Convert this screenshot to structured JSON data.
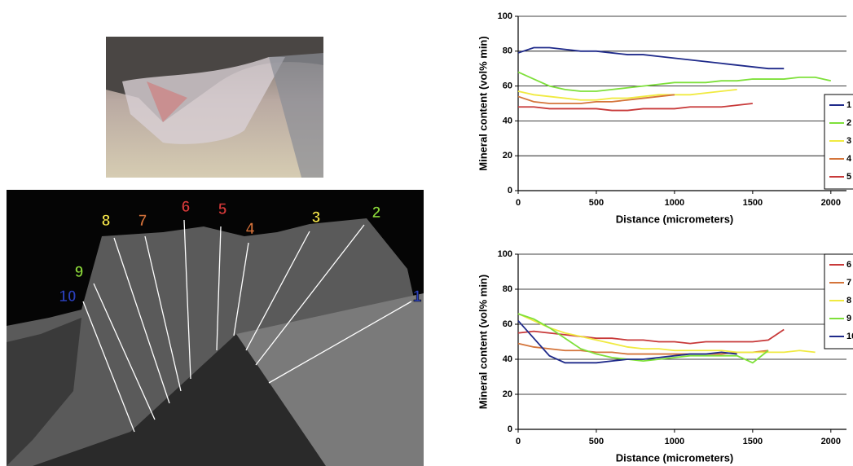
{
  "figure": {
    "line_labels": [
      {
        "text": "10",
        "color": "#2b3fb8"
      },
      {
        "text": "9",
        "color": "#8ad43a"
      },
      {
        "text": "8",
        "color": "#f2e24a"
      },
      {
        "text": "7",
        "color": "#d0703a"
      },
      {
        "text": "6",
        "color": "#d43a3a"
      },
      {
        "text": "5",
        "color": "#d43a3a"
      },
      {
        "text": "4",
        "color": "#d0703a"
      },
      {
        "text": "3",
        "color": "#f2e24a"
      },
      {
        "text": "2",
        "color": "#8ad43a"
      },
      {
        "text": "1",
        "color": "#2b3fb8"
      }
    ]
  },
  "chart_data": [
    {
      "type": "line",
      "x_label": "Distance (micrometers)",
      "y_label": "Mineral content (vol% min)",
      "x": [
        0,
        100,
        200,
        300,
        400,
        500,
        600,
        700,
        800,
        900,
        1000,
        1100,
        1200,
        1300,
        1400,
        1500,
        1600,
        1700,
        1800,
        1900,
        2000
      ],
      "xlim": [
        0,
        2100
      ],
      "xticks": [
        0,
        500,
        1000,
        1500,
        2000
      ],
      "ylim": [
        0,
        100
      ],
      "yticks": [
        0,
        20,
        40,
        60,
        80,
        100
      ],
      "grid": true,
      "legend": "right",
      "series": [
        {
          "name": "1",
          "color": "#1f2a8a",
          "values": [
            79,
            82,
            82,
            81,
            80,
            80,
            79,
            78,
            78,
            77,
            76,
            75,
            74,
            73,
            72,
            71,
            70,
            70,
            null,
            null,
            null
          ]
        },
        {
          "name": "2",
          "color": "#7ee03a",
          "values": [
            68,
            64,
            60,
            58,
            57,
            57,
            58,
            59,
            60,
            61,
            62,
            62,
            62,
            63,
            63,
            64,
            64,
            64,
            65,
            65,
            63
          ]
        },
        {
          "name": "3",
          "color": "#f0ea40",
          "values": [
            57,
            55,
            54,
            53,
            52,
            52,
            53,
            53,
            54,
            55,
            55,
            55,
            56,
            57,
            58,
            null,
            null,
            null,
            null,
            null,
            null
          ]
        },
        {
          "name": "4",
          "color": "#d4743a",
          "values": [
            54,
            51,
            50,
            50,
            50,
            51,
            51,
            52,
            53,
            54,
            55,
            null,
            null,
            null,
            null,
            null,
            null,
            null,
            null,
            null,
            null
          ]
        },
        {
          "name": "5",
          "color": "#c83a3a",
          "values": [
            48,
            48,
            47,
            47,
            47,
            47,
            46,
            46,
            47,
            47,
            47,
            48,
            48,
            48,
            49,
            50,
            null,
            null,
            null,
            null,
            null
          ]
        }
      ]
    },
    {
      "type": "line",
      "x_label": "Distance (micrometers)",
      "y_label": "Mineral content (vol% min)",
      "x": [
        0,
        100,
        200,
        300,
        400,
        500,
        600,
        700,
        800,
        900,
        1000,
        1100,
        1200,
        1300,
        1400,
        1500,
        1600,
        1700,
        1800,
        1900,
        2000
      ],
      "xlim": [
        0,
        2100
      ],
      "xticks": [
        0,
        500,
        1000,
        1500,
        2000
      ],
      "ylim": [
        0,
        100
      ],
      "yticks": [
        0,
        20,
        40,
        60,
        80,
        100
      ],
      "grid": true,
      "legend": "right",
      "series": [
        {
          "name": "6",
          "color": "#c83a3a",
          "values": [
            55,
            56,
            55,
            54,
            53,
            52,
            52,
            51,
            51,
            50,
            50,
            49,
            50,
            50,
            50,
            50,
            51,
            57,
            null,
            null,
            null
          ]
        },
        {
          "name": "7",
          "color": "#d4743a",
          "values": [
            49,
            47,
            46,
            45,
            45,
            44,
            44,
            43,
            43,
            43,
            43,
            43,
            43,
            43,
            44,
            44,
            45,
            null,
            null,
            null,
            null
          ]
        },
        {
          "name": "8",
          "color": "#f0ea40",
          "values": [
            66,
            62,
            58,
            55,
            53,
            51,
            49,
            47,
            46,
            46,
            45,
            45,
            45,
            45,
            44,
            44,
            44,
            44,
            45,
            44,
            null
          ]
        },
        {
          "name": "9",
          "color": "#7ee03a",
          "values": [
            66,
            63,
            58,
            52,
            46,
            43,
            41,
            40,
            39,
            40,
            41,
            42,
            42,
            42,
            42,
            38,
            45,
            null,
            null,
            null,
            null
          ]
        },
        {
          "name": "10",
          "color": "#1f2a8a",
          "values": [
            62,
            52,
            42,
            38,
            38,
            38,
            39,
            40,
            40,
            41,
            42,
            43,
            43,
            44,
            43,
            null,
            null,
            null,
            null,
            null,
            null
          ]
        }
      ]
    }
  ]
}
